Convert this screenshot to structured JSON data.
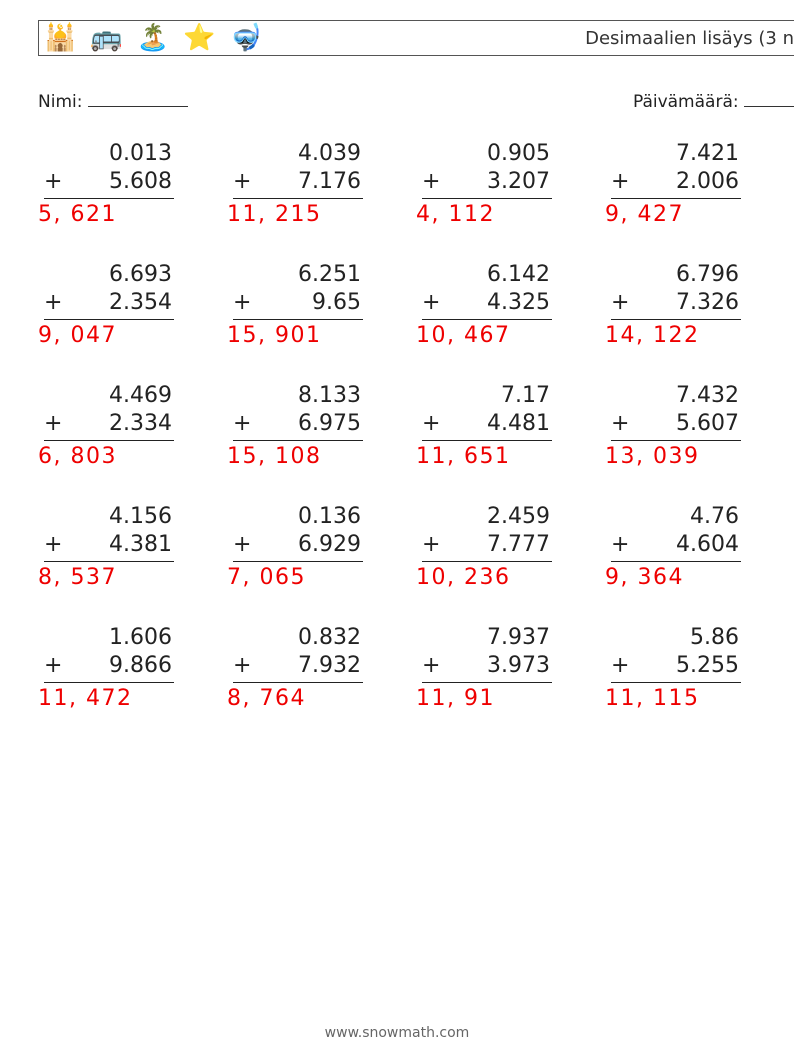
{
  "header": {
    "title": "Desimaalien lisäys (3 n",
    "icons": [
      "🕌",
      "🚌",
      "🏝️",
      "⭐",
      "🤿"
    ]
  },
  "labels": {
    "name": "Nimi:",
    "date": "Päivämäärä:",
    "name_blank_width": 100,
    "date_blank_width": 50
  },
  "style": {
    "font": "sans-serif",
    "text_color": "#222222",
    "answer_color": "#ee0000",
    "underline_color": "#222222",
    "problem_fontsize": 22,
    "header_fontsize": 18,
    "label_fontsize": 17,
    "footer_fontsize": 14,
    "columns": 4,
    "rows": 5,
    "stack_width": 130
  },
  "problems": [
    {
      "a": "0.013",
      "b": "5.608",
      "ans": "5, 621"
    },
    {
      "a": "4.039",
      "b": "7.176",
      "ans": "11, 215"
    },
    {
      "a": "0.905",
      "b": "3.207",
      "ans": "4, 112"
    },
    {
      "a": "7.421",
      "b": "2.006",
      "ans": "9, 427"
    },
    {
      "a": "6.693",
      "b": "2.354",
      "ans": "9, 047"
    },
    {
      "a": "6.251",
      "b": "9.65",
      "ans": "15, 901"
    },
    {
      "a": "6.142",
      "b": "4.325",
      "ans": "10, 467"
    },
    {
      "a": "6.796",
      "b": "7.326",
      "ans": "14, 122"
    },
    {
      "a": "4.469",
      "b": "2.334",
      "ans": "6, 803"
    },
    {
      "a": "8.133",
      "b": "6.975",
      "ans": "15, 108"
    },
    {
      "a": "7.17",
      "b": "4.481",
      "ans": "11, 651"
    },
    {
      "a": "7.432",
      "b": "5.607",
      "ans": "13, 039"
    },
    {
      "a": "4.156",
      "b": "4.381",
      "ans": "8, 537"
    },
    {
      "a": "0.136",
      "b": "6.929",
      "ans": "7, 065"
    },
    {
      "a": "2.459",
      "b": "7.777",
      "ans": "10, 236"
    },
    {
      "a": "4.76",
      "b": "4.604",
      "ans": "9, 364"
    },
    {
      "a": "1.606",
      "b": "9.866",
      "ans": "11, 472"
    },
    {
      "a": "0.832",
      "b": "7.932",
      "ans": "8, 764"
    },
    {
      "a": "7.937",
      "b": "3.973",
      "ans": "11, 91"
    },
    {
      "a": "5.86",
      "b": "5.255",
      "ans": "11, 115"
    }
  ],
  "footer": "www.snowmath.com"
}
